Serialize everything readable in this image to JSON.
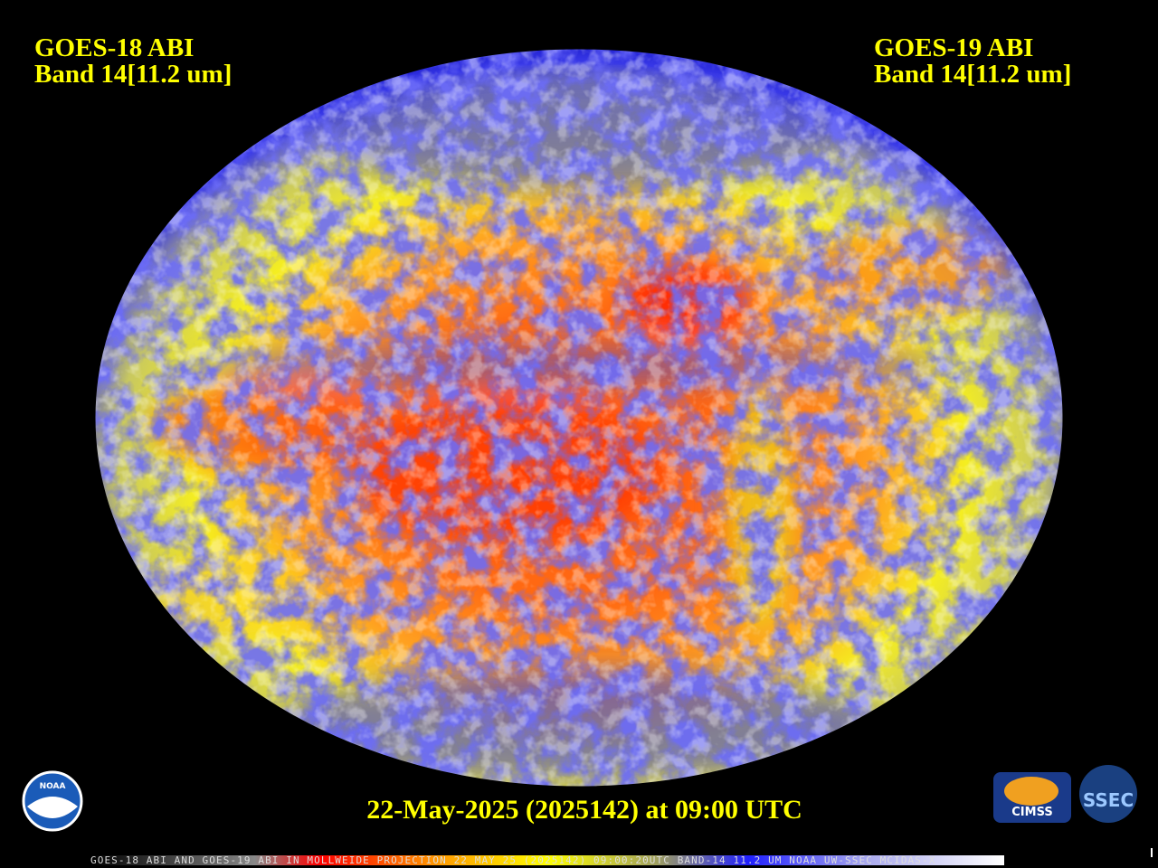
{
  "header": {
    "left": [
      "GOES-18 ABI",
      "Band 14[11.2 um]"
    ],
    "right": [
      "GOES-19 ABI",
      "Band 14[11.2 um]"
    ]
  },
  "timestamp": "22-May-2025 (2025142) at 09:00 UTC",
  "footer_caption": "GOES-18 ABI AND GOES-19 ABI IN MOLLWEIDE PROJECTION 22 MAY 25 (2025142) 09:00:20UTC BAND-14 11.2 UM NOAA UW-SSEC MCIDAS-X",
  "logos": {
    "noaa": "NOAA",
    "cimss": "CIMSS",
    "ssec": "SSEC"
  }
}
